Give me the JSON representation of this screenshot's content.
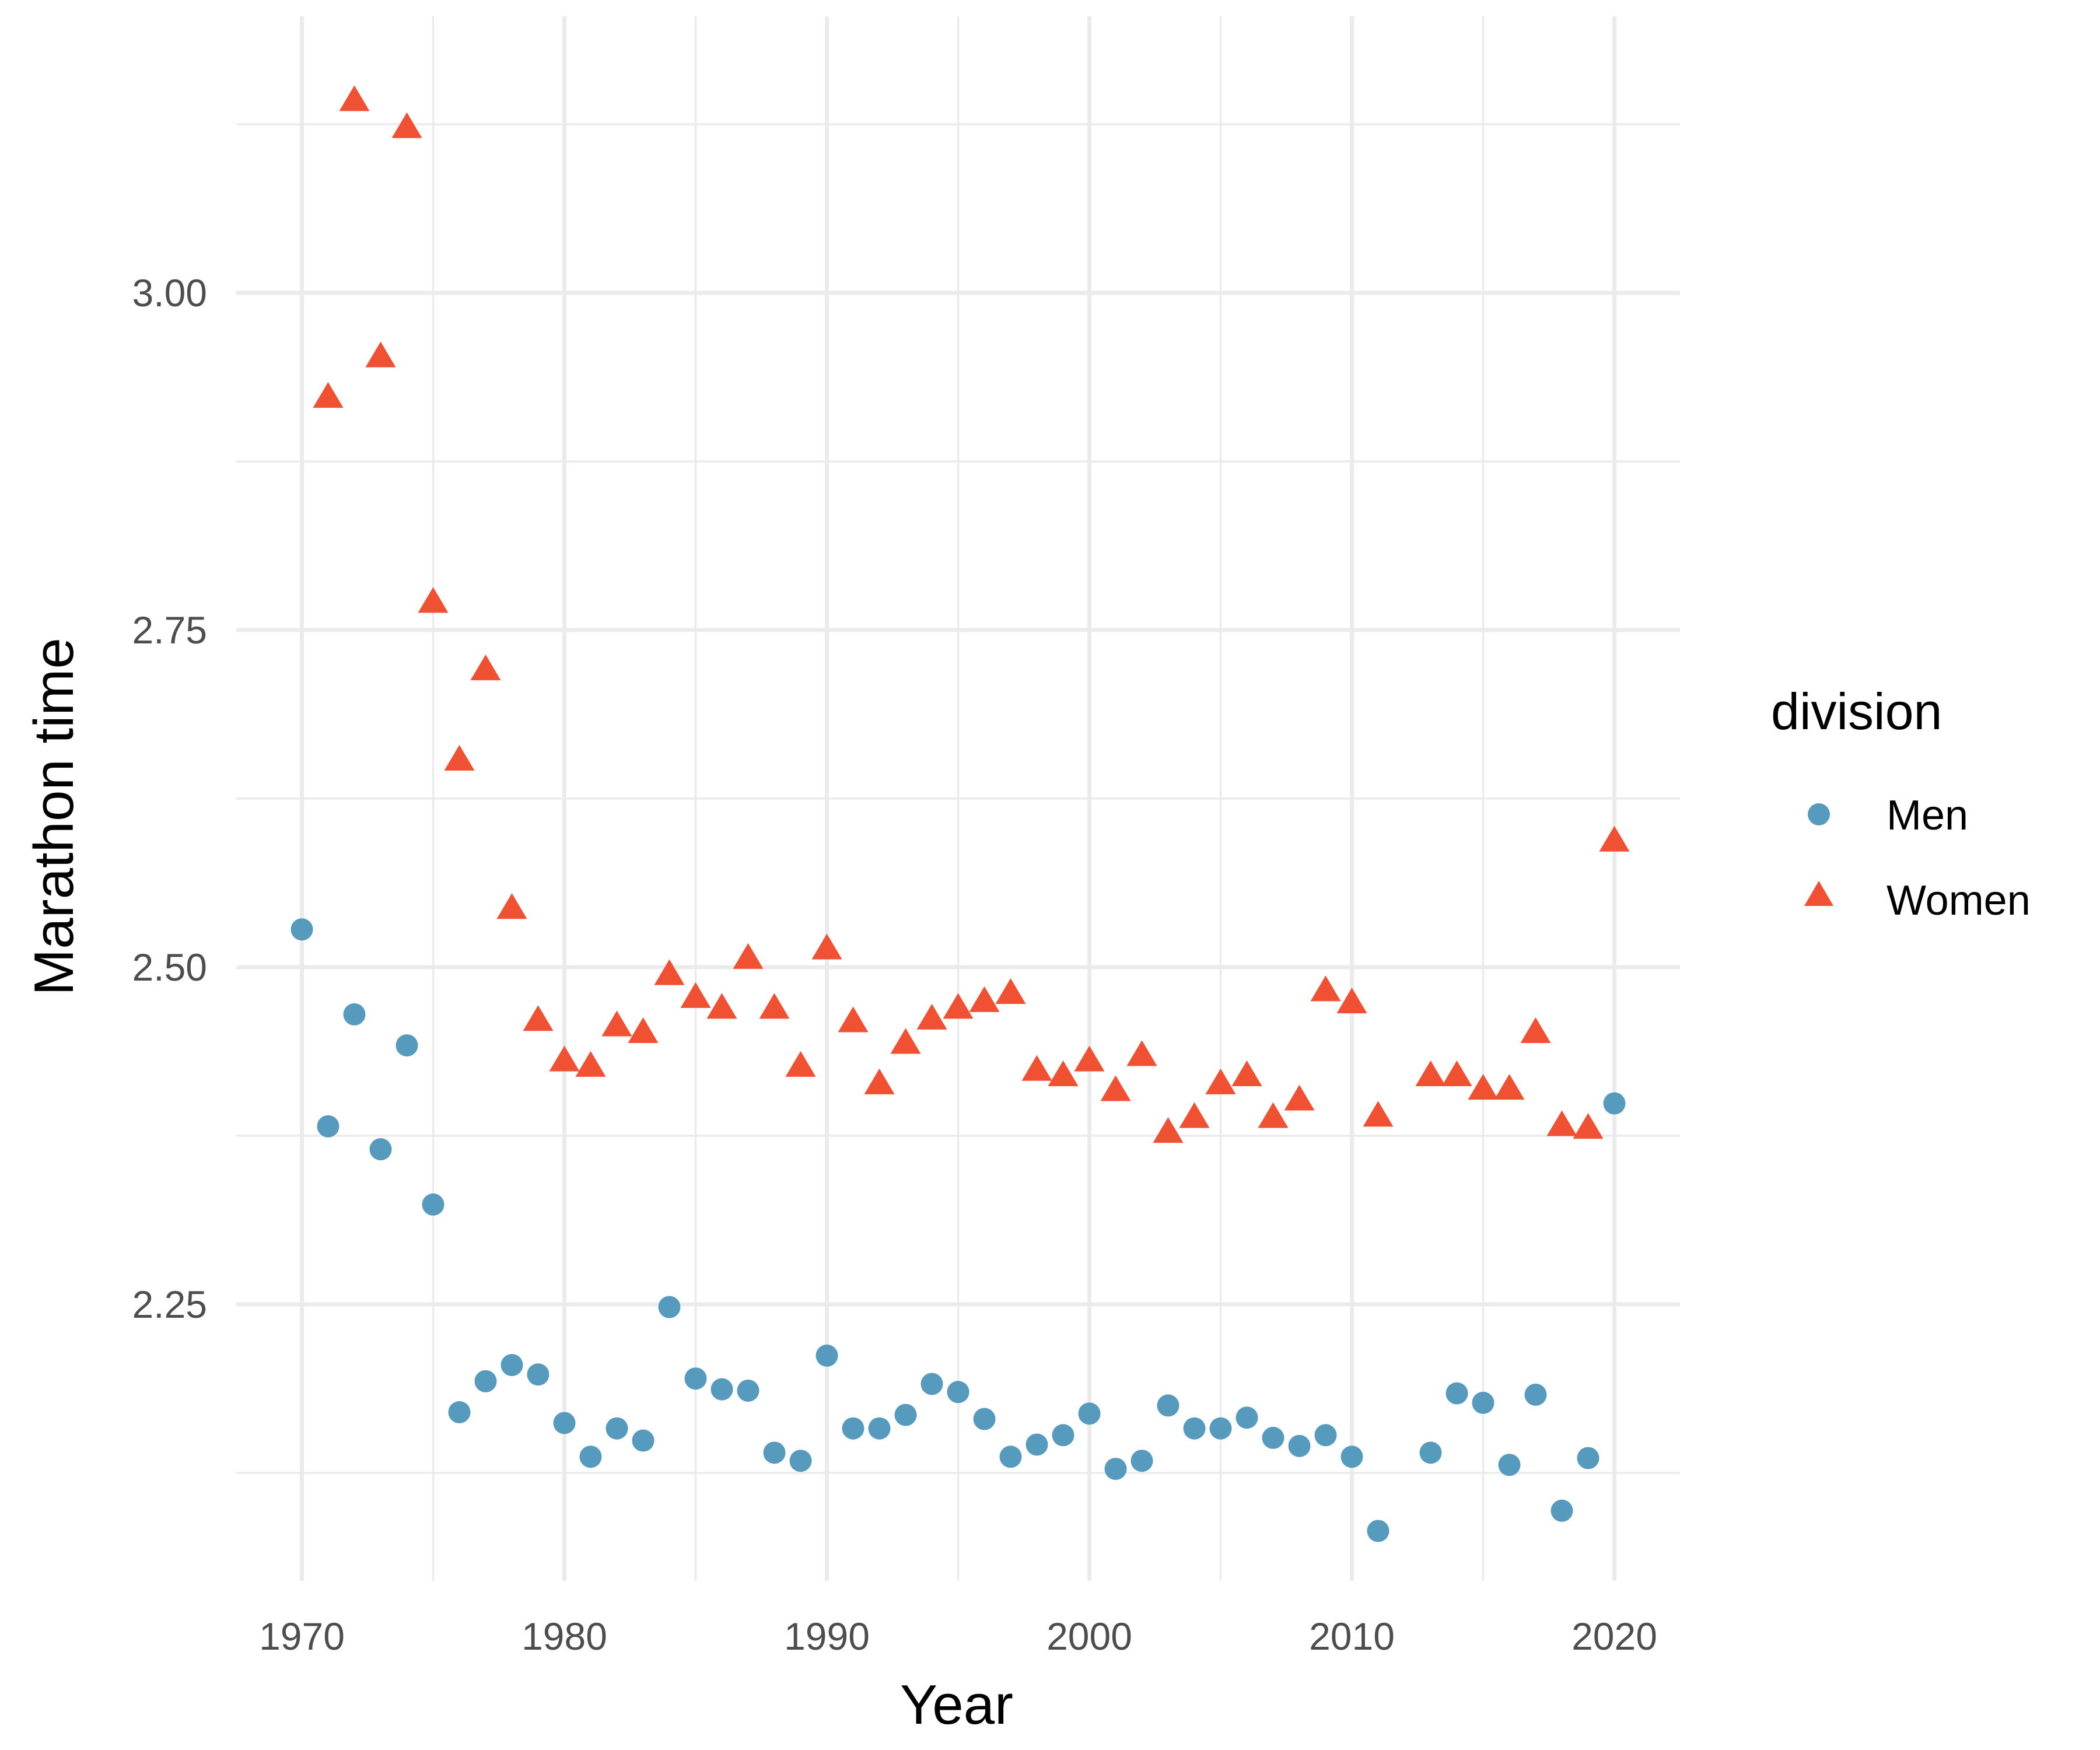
{
  "chart_data": {
    "type": "scatter",
    "title": "",
    "xlabel": "Year",
    "ylabel": "Marathon time",
    "xlim": [
      1967.5,
      2022.5
    ],
    "ylim": [
      2.045,
      3.205
    ],
    "x_ticks": [
      1970,
      1980,
      1990,
      2000,
      2010,
      2020
    ],
    "x_tick_labels": [
      "1970",
      "1980",
      "1990",
      "2000",
      "2010",
      "2020"
    ],
    "x_minor_ticks": [
      1975,
      1985,
      1995,
      2005,
      2015
    ],
    "y_ticks": [
      2.25,
      2.5,
      2.75,
      3.0
    ],
    "y_tick_labels": [
      "2.25",
      "2.50",
      "2.75",
      "3.00"
    ],
    "y_minor_ticks": [
      2.125,
      2.375,
      2.625,
      2.875,
      3.125
    ],
    "grid": true,
    "legend": {
      "title": "division",
      "position": "right",
      "entries": [
        {
          "label": "Men",
          "shape": "circle",
          "color": "#569BBD"
        },
        {
          "label": "Women",
          "shape": "triangle",
          "color": "#F05133"
        }
      ]
    },
    "series": [
      {
        "name": "Men",
        "shape": "circle",
        "color": "#569BBD",
        "x": [
          1970,
          1971,
          1972,
          1973,
          1974,
          1975,
          1976,
          1977,
          1978,
          1979,
          1980,
          1981,
          1982,
          1983,
          1984,
          1985,
          1986,
          1987,
          1988,
          1989,
          1990,
          1991,
          1992,
          1993,
          1994,
          1995,
          1996,
          1997,
          1998,
          1999,
          2000,
          2001,
          2002,
          2003,
          2004,
          2005,
          2006,
          2007,
          2008,
          2009,
          2010,
          2011,
          2013,
          2014,
          2015,
          2016,
          2017,
          2018,
          2019,
          2020
        ],
        "y": [
          2.528,
          2.382,
          2.465,
          2.365,
          2.442,
          2.324,
          2.17,
          2.193,
          2.205,
          2.198,
          2.162,
          2.137,
          2.158,
          2.149,
          2.248,
          2.195,
          2.187,
          2.186,
          2.14,
          2.134,
          2.212,
          2.158,
          2.158,
          2.168,
          2.191,
          2.185,
          2.165,
          2.137,
          2.146,
          2.153,
          2.169,
          2.128,
          2.134,
          2.175,
          2.158,
          2.158,
          2.166,
          2.151,
          2.145,
          2.153,
          2.137,
          2.082,
          2.14,
          2.184,
          2.177,
          2.131,
          2.183,
          2.097,
          2.136,
          2.399
        ]
      },
      {
        "name": "Women",
        "shape": "triangle",
        "color": "#F05133",
        "x": [
          1971,
          1972,
          1973,
          1974,
          1975,
          1976,
          1977,
          1978,
          1979,
          1980,
          1981,
          1982,
          1983,
          1984,
          1985,
          1986,
          1987,
          1988,
          1989,
          1990,
          1991,
          1992,
          1993,
          1994,
          1995,
          1996,
          1997,
          1998,
          1999,
          2000,
          2001,
          2002,
          2003,
          2004,
          2005,
          2006,
          2007,
          2008,
          2009,
          2010,
          2011,
          2013,
          2014,
          2015,
          2016,
          2017,
          2018,
          2019,
          2020
        ],
        "y": [
          2.922,
          3.142,
          2.952,
          3.122,
          2.77,
          2.653,
          2.72,
          2.543,
          2.46,
          2.43,
          2.426,
          2.456,
          2.451,
          2.494,
          2.477,
          2.469,
          2.506,
          2.469,
          2.426,
          2.513,
          2.459,
          2.413,
          2.443,
          2.461,
          2.469,
          2.474,
          2.48,
          2.423,
          2.419,
          2.43,
          2.408,
          2.434,
          2.377,
          2.388,
          2.413,
          2.419,
          2.388,
          2.401,
          2.482,
          2.473,
          2.389,
          2.419,
          2.419,
          2.409,
          2.409,
          2.451,
          2.382,
          2.38,
          2.593
        ]
      }
    ]
  }
}
